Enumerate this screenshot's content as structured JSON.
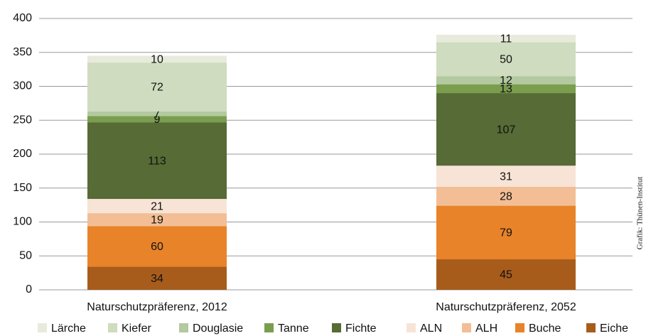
{
  "chart_data": {
    "type": "stacked_bar",
    "categories": [
      "Naturschutzpräferenz, 2012",
      "Naturschutzpräferenz, 2052"
    ],
    "series": [
      {
        "name": "Lärche",
        "color": "#e8ebdc",
        "values": [
          10,
          11
        ]
      },
      {
        "name": "Kiefer",
        "color": "#cfdcbf",
        "values": [
          72,
          50
        ]
      },
      {
        "name": "Douglasie",
        "color": "#b3c9a0",
        "values": [
          7,
          12
        ]
      },
      {
        "name": "Tanne",
        "color": "#7a9e4e",
        "values": [
          9,
          13
        ]
      },
      {
        "name": "Fichte",
        "color": "#566b35",
        "values": [
          113,
          107
        ]
      },
      {
        "name": "ALN",
        "color": "#f7e4d6",
        "values": [
          21,
          31
        ]
      },
      {
        "name": "ALH",
        "color": "#f3be95",
        "values": [
          19,
          28
        ]
      },
      {
        "name": "Buche",
        "color": "#e8832a",
        "values": [
          60,
          79
        ]
      },
      {
        "name": "Eiche",
        "color": "#a85c1b",
        "values": [
          34,
          45
        ]
      }
    ],
    "ylim": [
      0,
      400
    ],
    "yticks": [
      0,
      50,
      100,
      150,
      200,
      250,
      300,
      350,
      400
    ],
    "grid": true,
    "source": "Grafik: Thünen-Institut"
  }
}
